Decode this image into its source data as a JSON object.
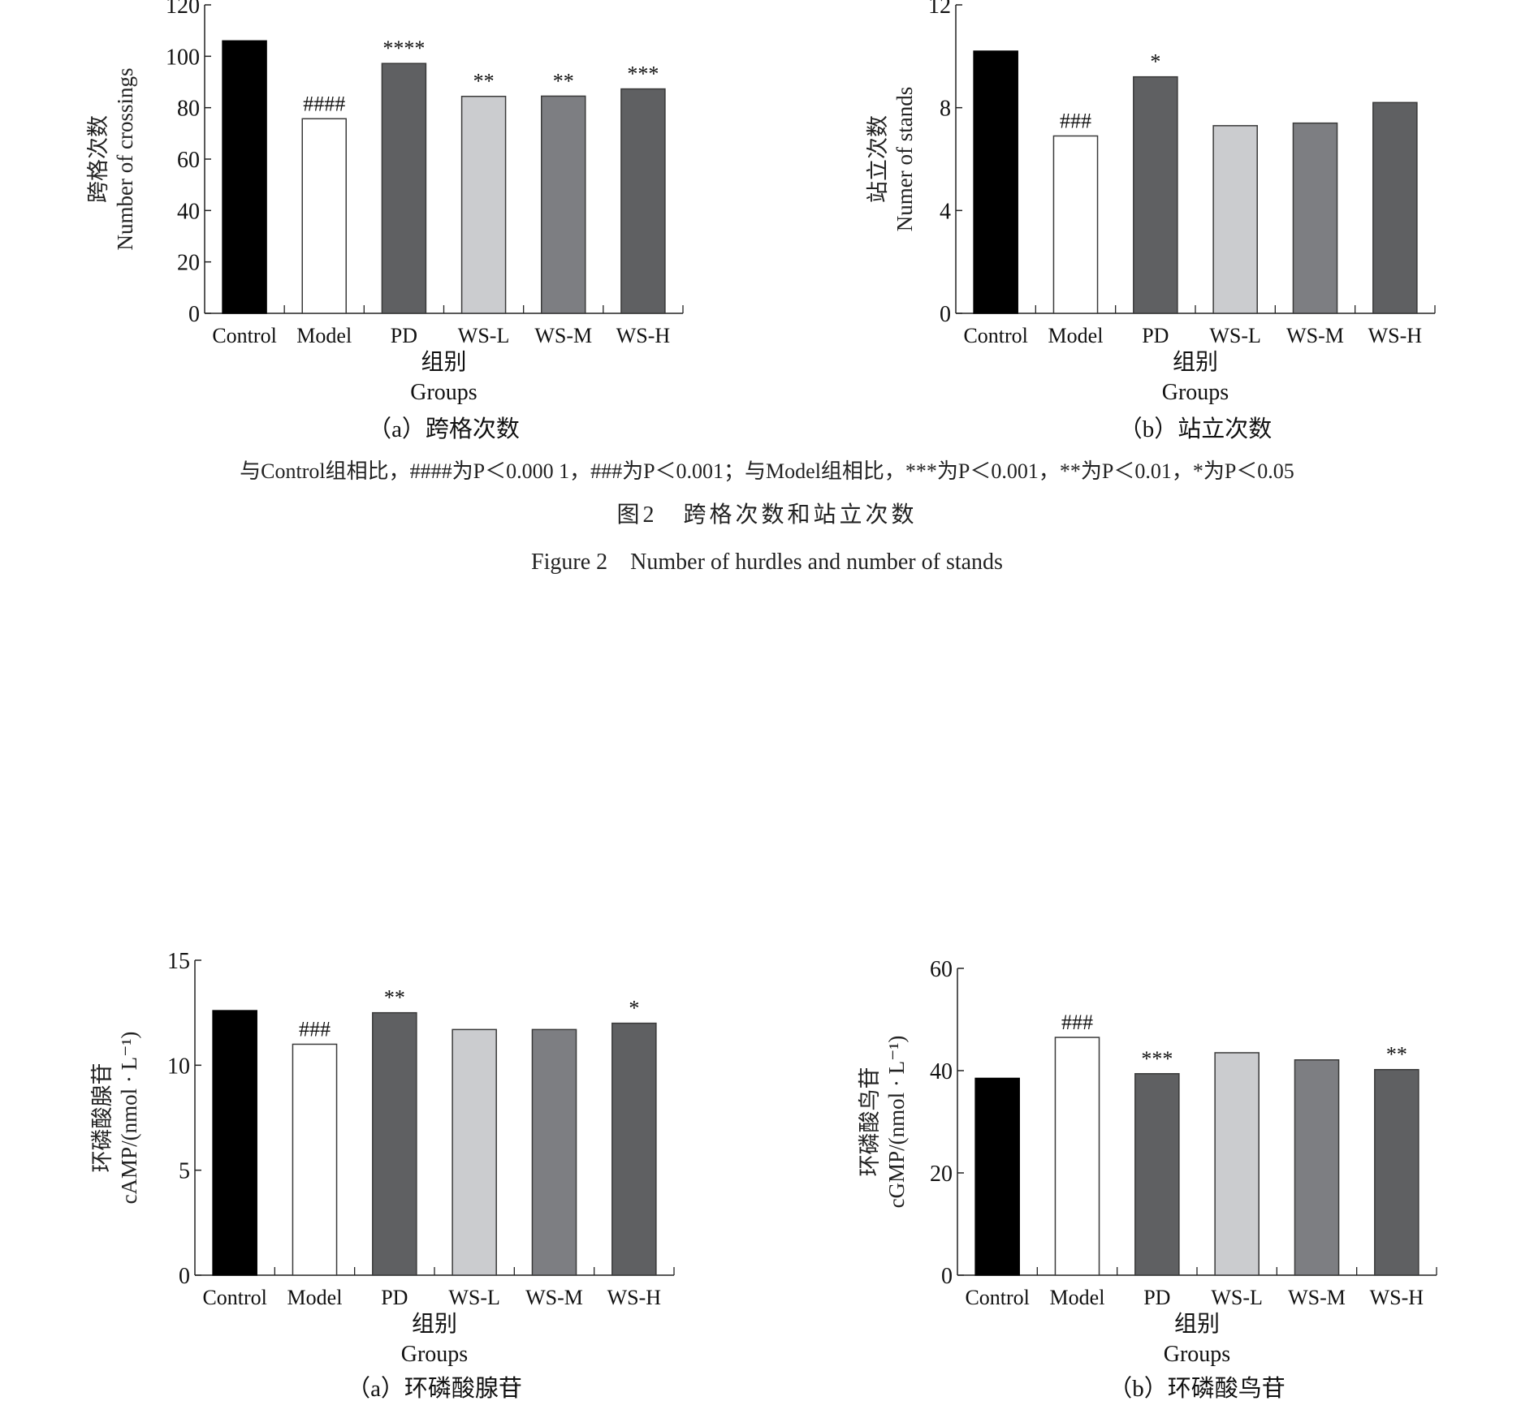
{
  "caption": {
    "note": "与Control组相比，####为P＜0.000 1，###为P＜0.001；与Model组相比，***为P＜0.001，**为P＜0.01，*为P＜0.05",
    "title_cn": "图2　跨格次数和站立次数",
    "title_en": "Figure 2　Number of hurdles and number of stands"
  },
  "colors": {
    "Control": "#000000",
    "Model": "#ffffff",
    "PD": "#5f6062",
    "WS-L": "#cbcccf",
    "WS-M": "#7d7e82",
    "WS-H": "#5f6062"
  },
  "chart_data": [
    {
      "type": "bar",
      "subtitle": "（a）跨格次数",
      "ylabel_cn": "跨格次数",
      "ylabel_en": "Number of crossings",
      "xlabel_cn": "组别",
      "xlabel_en": "Groups",
      "categories": [
        "Control",
        "Model",
        "PD",
        "WS-L",
        "WS-M",
        "WS-H"
      ],
      "values": [
        106,
        75.7,
        97.2,
        84.4,
        84.5,
        87.3
      ],
      "significance": [
        "",
        "####",
        "****",
        "**",
        "**",
        "***"
      ],
      "ylim": [
        0,
        120
      ],
      "yticks": [
        0,
        20,
        40,
        60,
        80,
        100,
        120
      ]
    },
    {
      "type": "bar",
      "subtitle": "（b）站立次数",
      "ylabel_cn": "站立次数",
      "ylabel_en": "Numer of stands",
      "xlabel_cn": "组别",
      "xlabel_en": "Groups",
      "categories": [
        "Control",
        "Model",
        "PD",
        "WS-L",
        "WS-M",
        "WS-H"
      ],
      "values": [
        10.2,
        6.9,
        9.2,
        7.3,
        7.4,
        8.2
      ],
      "significance": [
        "",
        "###",
        "*",
        "",
        "",
        ""
      ],
      "ylim": [
        0,
        12
      ],
      "yticks": [
        0,
        4,
        8,
        12
      ]
    },
    {
      "type": "bar",
      "subtitle": "（a）环磷酸腺苷",
      "ylabel_cn": "环磷酸腺苷",
      "ylabel_en": "cAMP/(nmol · L⁻¹)",
      "xlabel_cn": "组别",
      "xlabel_en": "Groups",
      "categories": [
        "Control",
        "Model",
        "PD",
        "WS-L",
        "WS-M",
        "WS-H"
      ],
      "values": [
        12.6,
        11.0,
        12.5,
        11.7,
        11.7,
        12.0
      ],
      "significance": [
        "",
        "###",
        "**",
        "",
        "",
        "*"
      ],
      "ylim": [
        0,
        15
      ],
      "yticks": [
        0,
        5,
        10,
        15
      ]
    },
    {
      "type": "bar",
      "subtitle": "（b）环磷酸鸟苷",
      "ylabel_cn": "环磷酸鸟苷",
      "ylabel_en": "cGMP/(nmol · L⁻¹)",
      "xlabel_cn": "组别",
      "xlabel_en": "Groups",
      "categories": [
        "Control",
        "Model",
        "PD",
        "WS-L",
        "WS-M",
        "WS-H"
      ],
      "values": [
        38.5,
        46.5,
        39.4,
        43.5,
        42.1,
        40.2
      ],
      "significance": [
        "",
        "###",
        "***",
        "",
        "",
        "**"
      ],
      "ylim": [
        0,
        60
      ],
      "yticks": [
        0,
        20,
        40,
        60
      ]
    }
  ]
}
